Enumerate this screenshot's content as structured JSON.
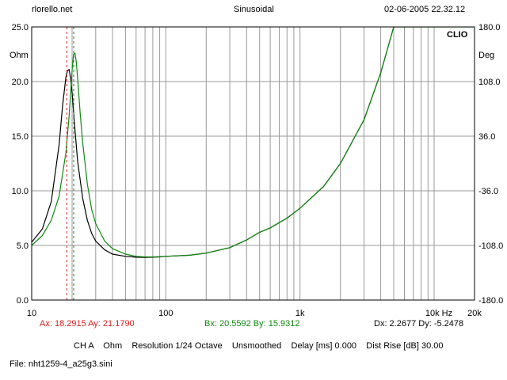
{
  "header": {
    "site": "rlorello.net",
    "mode": "Sinusoidal",
    "datetime": "02-06-2005 22.32.12"
  },
  "chart_data": {
    "type": "line",
    "brand": "CLIO",
    "x_scale": "log",
    "xlim": [
      10,
      20000
    ],
    "x_tick_labels": [
      "10",
      "100",
      "1k",
      "10k Hz",
      "20k"
    ],
    "y_left_unit": "Ohm",
    "y_left_ticks": [
      "25.0",
      "20.0",
      "15.0",
      "10.0",
      "5.0",
      "0.0"
    ],
    "ylim_left": [
      0,
      25
    ],
    "y_right_unit": "Deg",
    "y_right_ticks": [
      "180.0",
      "108.0",
      "36.0",
      "-36.0",
      "-108.0",
      "-180.0"
    ],
    "ylim_right": [
      -180,
      180
    ],
    "grid": true,
    "colors": {
      "black_series": "#000000",
      "green_series": "#118811",
      "marker_a": "#dd2222",
      "marker_b": "#118811"
    },
    "series": [
      {
        "color": "black",
        "points": [
          [
            10,
            5.3
          ],
          [
            12,
            6.5
          ],
          [
            14,
            9.0
          ],
          [
            16,
            14.2
          ],
          [
            17,
            17.8
          ],
          [
            18,
            20.4
          ],
          [
            18.5,
            21.0
          ],
          [
            19,
            21.1
          ],
          [
            19.5,
            20.3
          ],
          [
            20,
            19.0
          ],
          [
            21,
            15.6
          ],
          [
            22,
            12.7
          ],
          [
            24,
            9.3
          ],
          [
            26,
            7.3
          ],
          [
            28,
            6.1
          ],
          [
            30,
            5.4
          ],
          [
            35,
            4.6
          ],
          [
            40,
            4.2
          ],
          [
            50,
            4.0
          ],
          [
            60,
            3.92
          ],
          [
            70,
            3.9
          ],
          [
            80,
            3.92
          ],
          [
            90,
            3.95
          ],
          [
            100,
            4.0
          ],
          [
            150,
            4.1
          ],
          [
            200,
            4.3
          ],
          [
            300,
            4.8
          ],
          [
            400,
            5.5
          ],
          [
            500,
            6.2
          ],
          [
            600,
            6.6
          ],
          [
            800,
            7.5
          ],
          [
            1000,
            8.4
          ],
          [
            1500,
            10.4
          ],
          [
            2000,
            12.5
          ],
          [
            3000,
            16.5
          ],
          [
            4000,
            20.8
          ],
          [
            5000,
            25.0
          ]
        ]
      },
      {
        "color": "green",
        "points": [
          [
            10,
            5.0
          ],
          [
            12,
            5.9
          ],
          [
            14,
            7.3
          ],
          [
            16,
            9.5
          ],
          [
            18,
            13.5
          ],
          [
            19,
            16.8
          ],
          [
            20,
            21.0
          ],
          [
            20.5,
            22.5
          ],
          [
            21,
            22.6
          ],
          [
            21.5,
            21.8
          ],
          [
            22,
            20.3
          ],
          [
            23,
            17.0
          ],
          [
            24,
            14.4
          ],
          [
            26,
            10.6
          ],
          [
            28,
            8.3
          ],
          [
            30,
            7.0
          ],
          [
            35,
            5.4
          ],
          [
            40,
            4.7
          ],
          [
            50,
            4.2
          ],
          [
            60,
            4.0
          ],
          [
            70,
            3.95
          ],
          [
            80,
            3.95
          ],
          [
            90,
            3.97
          ],
          [
            100,
            4.0
          ],
          [
            150,
            4.1
          ],
          [
            200,
            4.3
          ],
          [
            300,
            4.8
          ],
          [
            400,
            5.5
          ],
          [
            500,
            6.2
          ],
          [
            600,
            6.6
          ],
          [
            800,
            7.5
          ],
          [
            1000,
            8.4
          ],
          [
            1500,
            10.4
          ],
          [
            2000,
            12.5
          ],
          [
            3000,
            16.5
          ],
          [
            4000,
            20.8
          ],
          [
            5000,
            25.0
          ],
          [
            20000,
            25.0
          ]
        ]
      }
    ],
    "markers": [
      {
        "x": 18.2915,
        "color": "red"
      },
      {
        "x": 20.5592,
        "color": "green"
      }
    ]
  },
  "readouts": {
    "a": "Ax: 18.2915   Ay: 21.1790",
    "b": "Bx: 20.5592   By: 15.9312",
    "d": "Dx: 2.2677   Dy: -5.2478"
  },
  "settings_line": "CH A    Ohm    Resolution 1/24 Octave    Unsmoothed    Delay [ms] 0.000    Dist Rise [dB] 30.00",
  "file_line": "File: nht1259-4_a25g3.sini"
}
